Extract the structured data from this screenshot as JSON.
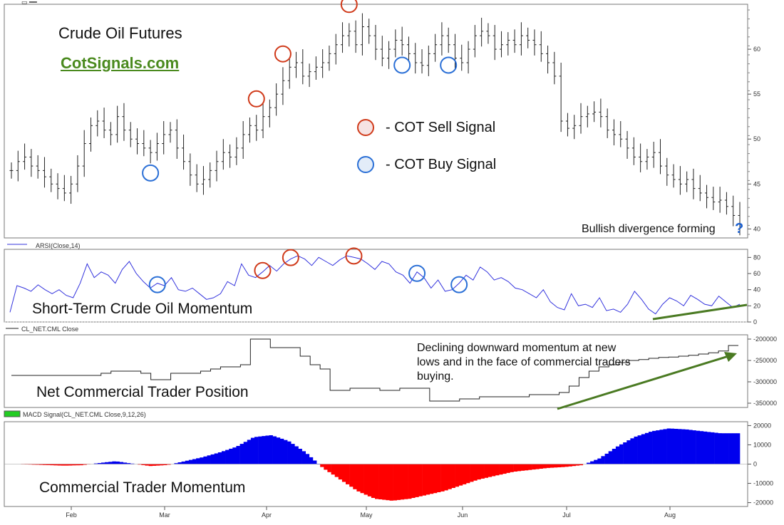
{
  "annotations": {
    "title": "Crude Oil Futures",
    "site": "CotSignals.com",
    "legend_sell": "- COT Sell Signal",
    "legend_buy": "- COT Buy Signal",
    "bullish": "Bullish divergence forming",
    "qmark": "?",
    "panel2": "Short-Term Crude Oil Momentum",
    "panel3": "Net Commercial Trader Position",
    "panel4": "Commercial Trader Momentum",
    "note": "Declining downward momentum at new lows and in the face of commercial traders buying."
  },
  "headers": {
    "rsi": "ARSI(Close,14)",
    "net": "CL_NET.CML Close",
    "macd": "MACD Signal(CL_NET.CML Close,9,12,26)"
  },
  "colors": {
    "sell": "#d03a1a",
    "buy": "#2a6fd6",
    "rsi_line": "#3333dd",
    "macd_pos": "#0000ee",
    "macd_neg": "#ff0000",
    "arrow": "#4a7a22",
    "site": "#4a8a1e"
  },
  "chart_data": [
    {
      "type": "ohlc",
      "x_ticks": [
        "Feb",
        "Mar",
        "Apr",
        "May",
        "Jun",
        "Jul",
        "Aug"
      ],
      "y_ticks": [
        40,
        45,
        50,
        55,
        60
      ],
      "ylim": [
        39,
        65
      ],
      "close": [
        46.5,
        47.5,
        48,
        47,
        46.5,
        45.8,
        45,
        44.5,
        44,
        45,
        47,
        49.5,
        51.5,
        52,
        51,
        50.5,
        52.5,
        51,
        50,
        49.5,
        49,
        48.5,
        49.5,
        50.5,
        51,
        49,
        47.5,
        46,
        45,
        45.5,
        46.5,
        47.5,
        48.5,
        48,
        49,
        50.5,
        51.5,
        51,
        52.5,
        53.5,
        55,
        56.5,
        58,
        58.5,
        57,
        57.5,
        58,
        58.5,
        59.5,
        60.5,
        61.5,
        62,
        60.5,
        62.5,
        61.5,
        60,
        59,
        60,
        61,
        60.5,
        59.5,
        58.5,
        58.2,
        59.5,
        60.5,
        61.5,
        60.5,
        59,
        58.5,
        60,
        61.5,
        62,
        61.5,
        60,
        60.5,
        61,
        60.5,
        61.5,
        61,
        60.5,
        59.5,
        58.5,
        57,
        52,
        51.2,
        51.5,
        52.5,
        52.8,
        53,
        52.5,
        51,
        50.5,
        50,
        49,
        48,
        47.5,
        48,
        48.5,
        47,
        46,
        45.5,
        45,
        45.5,
        44.5,
        44,
        43.5,
        43,
        43.2,
        42.5,
        41.5,
        40.2
      ],
      "sell_signals_x": [
        37,
        41,
        51
      ],
      "buy_signals_x": [
        21,
        59,
        66
      ]
    },
    {
      "type": "line",
      "series": [
        {
          "name": "ARSI(Close,14)",
          "values": [
            12,
            45,
            42,
            38,
            46,
            40,
            35,
            40,
            33,
            30,
            48,
            72,
            55,
            62,
            58,
            48,
            65,
            75,
            60,
            50,
            42,
            48,
            45,
            55,
            40,
            38,
            42,
            35,
            28,
            30,
            35,
            50,
            45,
            72,
            58,
            55,
            62,
            70,
            63,
            72,
            78,
            82,
            78,
            70,
            80,
            75,
            70,
            77,
            82,
            80,
            78,
            72,
            65,
            75,
            72,
            62,
            58,
            48,
            62,
            55,
            42,
            52,
            38,
            40,
            48,
            58,
            52,
            68,
            62,
            52,
            55,
            50,
            42,
            40,
            35,
            30,
            40,
            25,
            18,
            15,
            35,
            20,
            22,
            18,
            30,
            14,
            16,
            12,
            22,
            38,
            28,
            16,
            10,
            22,
            30,
            26,
            20,
            33,
            28,
            22,
            20,
            32,
            25,
            18,
            22
          ]
        }
      ],
      "y_ticks": [
        0,
        20,
        40,
        60,
        80
      ],
      "ylim": [
        0,
        90
      ],
      "sell_signals_x": [
        36,
        40,
        49
      ],
      "buy_signals_x": [
        21,
        58,
        64
      ]
    },
    {
      "type": "line",
      "series": [
        {
          "name": "CL_NET.CML Close",
          "values": [
            -285000,
            -285000,
            -285000,
            -285000,
            -285000,
            -285000,
            -285000,
            -285000,
            -285000,
            -280000,
            -275000,
            -275000,
            -275000,
            -280000,
            -295000,
            -295000,
            -280000,
            -280000,
            -280000,
            -275000,
            -270000,
            -265000,
            -265000,
            -260000,
            -200000,
            -200000,
            -220000,
            -220000,
            -220000,
            -240000,
            -260000,
            -270000,
            -320000,
            -320000,
            -315000,
            -315000,
            -315000,
            -320000,
            -320000,
            -315000,
            -315000,
            -315000,
            -345000,
            -345000,
            -345000,
            -340000,
            -340000,
            -335000,
            -335000,
            -335000,
            -335000,
            -335000,
            -330000,
            -330000,
            -330000,
            -325000,
            -310000,
            -290000,
            -275000,
            -265000,
            -260000,
            -255000,
            -250000,
            -248000,
            -245000,
            -243000,
            -242000,
            -240000,
            -238000,
            -235000,
            -232000,
            -228000,
            -215000,
            -215000
          ]
        }
      ],
      "y_ticks": [
        -200000,
        -250000,
        -300000,
        -350000
      ],
      "ylim": [
        -360000,
        -190000
      ]
    },
    {
      "type": "area",
      "series": [
        {
          "name": "MACD Signal(CL_NET.CML Close,9,12,26)",
          "values": [
            0,
            -200,
            -500,
            -800,
            -600,
            500,
            1500,
            200,
            -1000,
            -500,
            1500,
            3500,
            6000,
            9000,
            14000,
            15000,
            12000,
            6000,
            -2000,
            -8000,
            -14000,
            -18000,
            -19000,
            -18000,
            -16000,
            -14000,
            -11000,
            -8000,
            -6000,
            -4000,
            -3000,
            -2000,
            -1500,
            -500,
            3000,
            9000,
            14000,
            17000,
            18500,
            18000,
            17000,
            16000,
            16000
          ]
        }
      ],
      "y_ticks": [
        20000,
        10000,
        0,
        -10000,
        -20000
      ],
      "ylim": [
        -22000,
        22000
      ]
    }
  ]
}
